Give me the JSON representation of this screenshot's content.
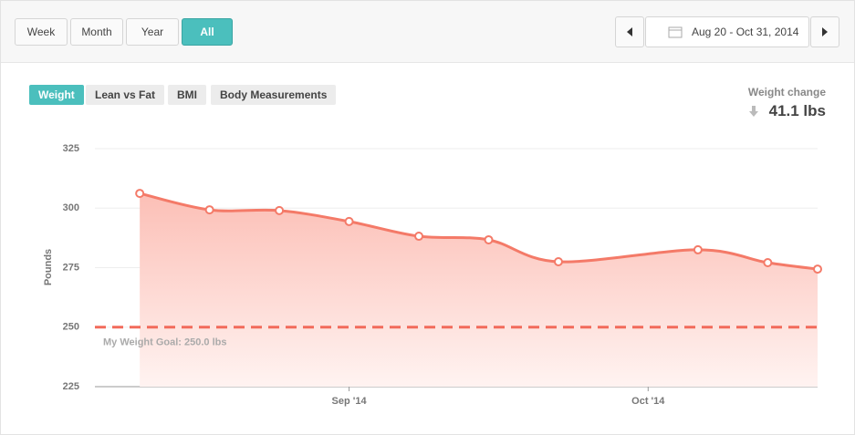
{
  "toolbar": {
    "ranges": [
      "Week",
      "Month",
      "Year",
      "All"
    ],
    "active_range": 3,
    "date_range": "Aug 20 - Oct 31, 2014"
  },
  "tabs": {
    "items": [
      "Weight",
      "Lean vs Fat",
      "BMI",
      "Body Measurements"
    ],
    "active": 0
  },
  "summary": {
    "label": "Weight change",
    "value": "41.1 lbs"
  },
  "chart_data": {
    "type": "area",
    "y_label": "Pounds",
    "x": [
      -21,
      -14,
      -7,
      0,
      7,
      14,
      21,
      35,
      42,
      47
    ],
    "series": [
      {
        "name": "Weight",
        "color": "#f47a68",
        "values": [
          306.2,
          299.3,
          299.0,
          294.4,
          288.2,
          286.7,
          277.5,
          282.5,
          277.1,
          274.4
        ]
      }
    ],
    "xlim": [
      -25.5,
      47
    ],
    "xticks": [
      {
        "value": 0,
        "label": "Sep '14"
      },
      {
        "value": 30,
        "label": "Oct '14"
      }
    ],
    "ylim": [
      225,
      325
    ],
    "yticks": [
      225,
      250,
      275,
      300,
      325
    ],
    "grid": true,
    "goal": {
      "value": 250,
      "label": "My Weight Goal: 250.0 lbs",
      "color": "#f26b5b"
    }
  }
}
